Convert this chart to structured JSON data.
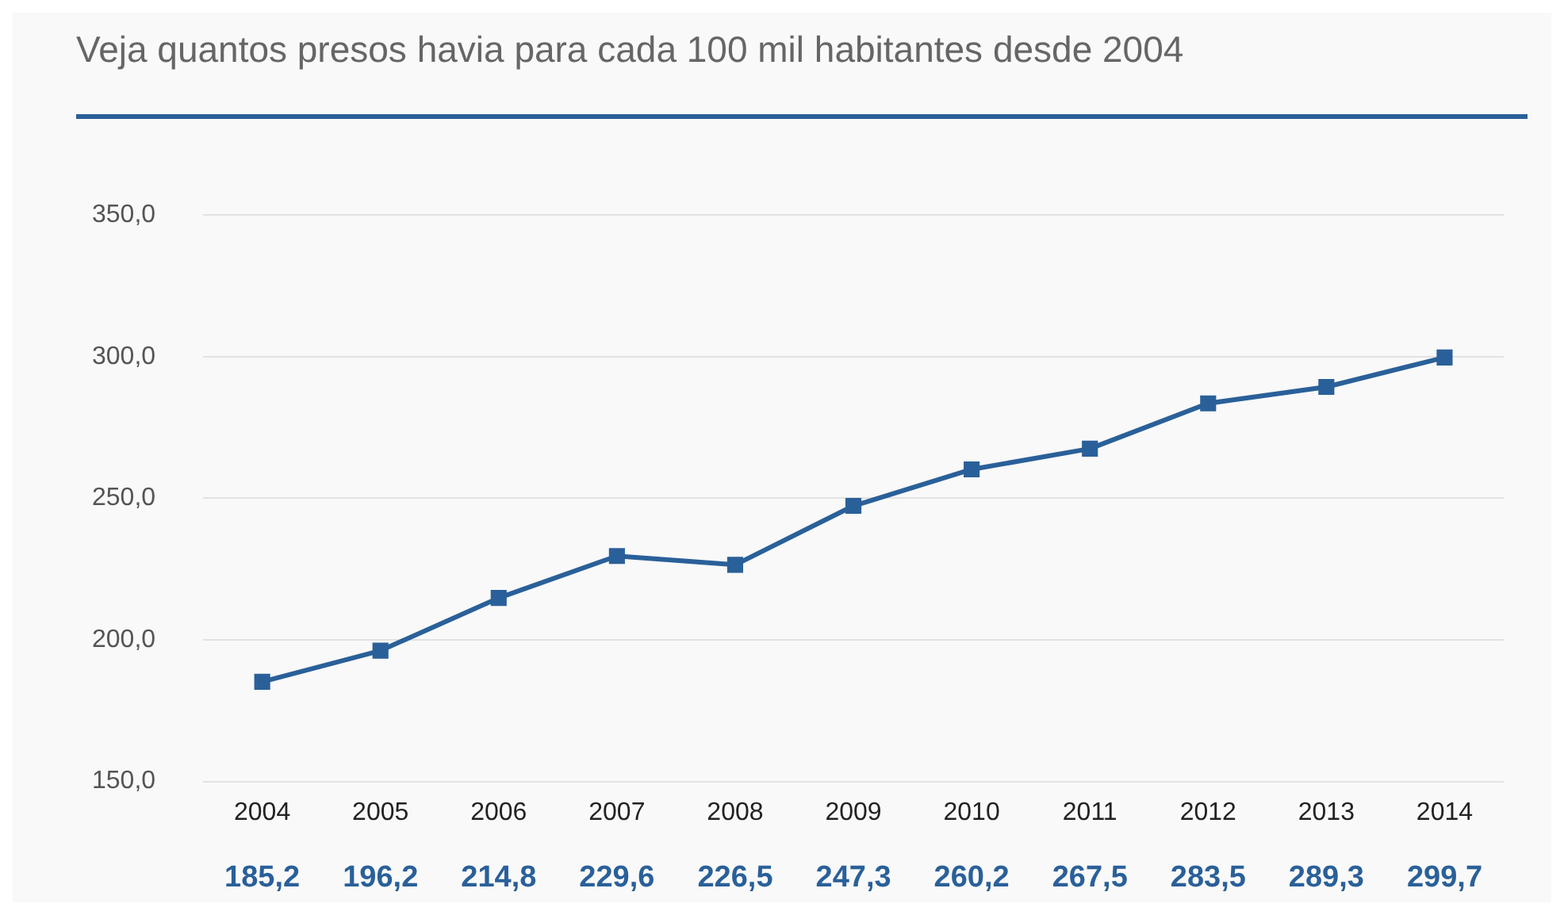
{
  "chart_data": {
    "type": "line",
    "title": "Veja quantos presos havia para cada 100 mil habitantes desde 2004",
    "categories": [
      "2004",
      "2005",
      "2006",
      "2007",
      "2008",
      "2009",
      "2010",
      "2011",
      "2012",
      "2013",
      "2014"
    ],
    "series": [
      {
        "color": "#2a6099",
        "values": [
          185.2,
          196.2,
          214.8,
          229.6,
          226.5,
          247.3,
          260.2,
          267.5,
          283.5,
          289.3,
          299.7
        ],
        "value_labels": [
          "185,2",
          "196,2",
          "214,8",
          "229,6",
          "226,5",
          "247,3",
          "260,2",
          "267,5",
          "283,5",
          "289,3",
          "299,7"
        ]
      }
    ],
    "ylim": [
      150,
      350
    ],
    "yticks": [
      {
        "value": 150,
        "label": "150,0"
      },
      {
        "value": 200,
        "label": "200,0"
      },
      {
        "value": 250,
        "label": "250,0"
      },
      {
        "value": 300,
        "label": "300,0"
      },
      {
        "value": 350,
        "label": "350,0"
      }
    ],
    "grid": "y",
    "legend": false,
    "marker": "square",
    "line_style": "solid"
  }
}
